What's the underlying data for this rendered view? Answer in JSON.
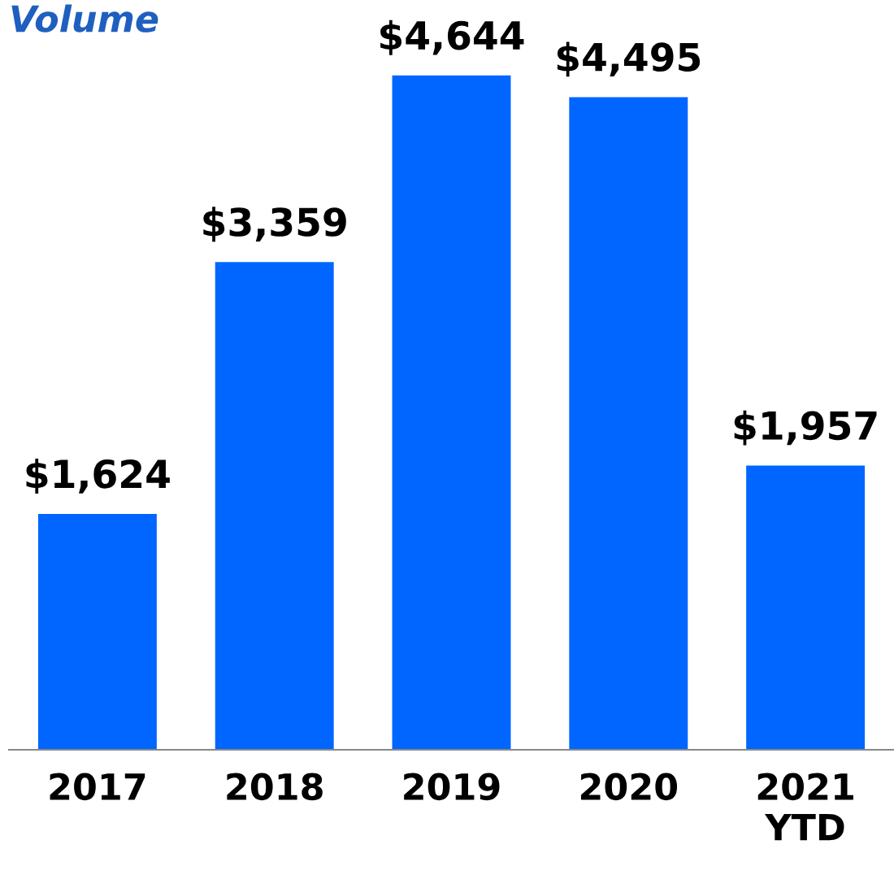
{
  "chart_data": {
    "type": "bar",
    "title": "Volume",
    "categories": [
      "2017",
      "2018",
      "2019",
      "2020",
      "2021\nYTD"
    ],
    "values": [
      1624,
      3359,
      4644,
      4495,
      1957
    ],
    "value_labels": [
      "$1,624",
      "$3,359",
      "$4,644",
      "$4,495",
      "$1,957"
    ],
    "color": "#0066ff",
    "grid": false,
    "legend": false
  }
}
